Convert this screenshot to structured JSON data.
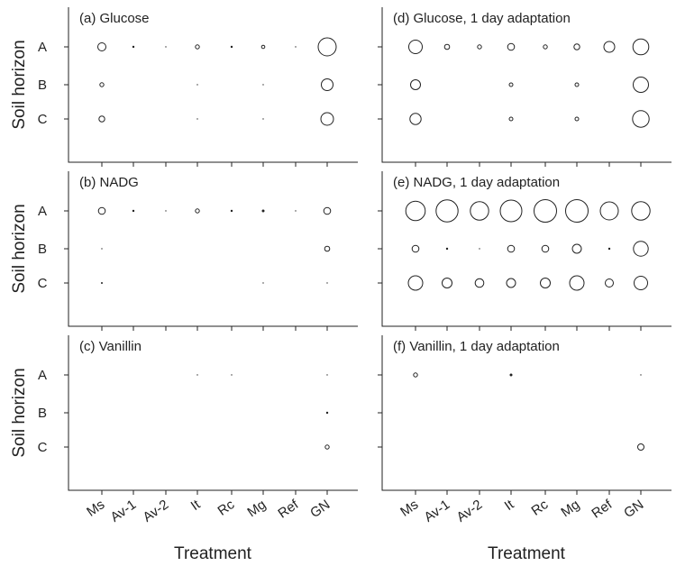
{
  "chart_data": {
    "type": "scatter",
    "encoding": "bubble",
    "xlabel": "Treatment",
    "ylabel": "Soil horizon",
    "categories": [
      "Ms",
      "Av-1",
      "Av-2",
      "It",
      "Rc",
      "Mg",
      "Ref",
      "GN"
    ],
    "horizons": [
      "A",
      "B",
      "C"
    ],
    "grid": false,
    "legend": "none",
    "panels": [
      {
        "title": "(a) Glucose",
        "values": [
          [
            0.45,
            0.12,
            0.05,
            0.22,
            0.12,
            0.18,
            0.05,
            1.0
          ],
          [
            0.22,
            0.0,
            0.0,
            0.08,
            0.0,
            0.05,
            0.0,
            0.65
          ],
          [
            0.32,
            0.0,
            0.0,
            0.08,
            0.0,
            0.05,
            0.0,
            0.7
          ]
        ]
      },
      {
        "title": "(d) Glucose, 1 day adaptation",
        "values": [
          [
            0.75,
            0.28,
            0.22,
            0.38,
            0.22,
            0.32,
            0.6,
            0.88
          ],
          [
            0.55,
            0.0,
            0.0,
            0.2,
            0.0,
            0.2,
            0.0,
            0.85
          ],
          [
            0.62,
            0.0,
            0.0,
            0.2,
            0.0,
            0.2,
            0.0,
            0.92
          ]
        ]
      },
      {
        "title": "(b) NADG",
        "values": [
          [
            0.38,
            0.12,
            0.05,
            0.22,
            0.12,
            0.15,
            0.05,
            0.38
          ],
          [
            0.03,
            0.0,
            0.0,
            0.0,
            0.0,
            0.0,
            0.0,
            0.28
          ],
          [
            0.1,
            0.0,
            0.0,
            0.0,
            0.0,
            0.03,
            0.0,
            0.05
          ]
        ]
      },
      {
        "title": "(e) NADG, 1 day adaptation",
        "values": [
          [
            1.08,
            1.22,
            1.02,
            1.2,
            1.25,
            1.25,
            1.0,
            1.02
          ],
          [
            0.38,
            0.12,
            0.08,
            0.38,
            0.38,
            0.5,
            0.12,
            0.82
          ],
          [
            0.8,
            0.55,
            0.48,
            0.5,
            0.55,
            0.8,
            0.45,
            0.75
          ]
        ]
      },
      {
        "title": "(c) Vanillin",
        "values": [
          [
            0.0,
            0.0,
            0.0,
            0.05,
            0.05,
            0.0,
            0.0,
            0.05
          ],
          [
            0.0,
            0.0,
            0.0,
            0.0,
            0.0,
            0.0,
            0.0,
            0.12
          ],
          [
            0.0,
            0.0,
            0.0,
            0.0,
            0.0,
            0.0,
            0.0,
            0.22
          ]
        ]
      },
      {
        "title": "(f) Vanillin, 1 day adaptation",
        "values": [
          [
            0.22,
            0.0,
            0.0,
            0.15,
            0.0,
            0.0,
            0.0,
            0.05
          ],
          [
            0.0,
            0.0,
            0.0,
            0.0,
            0.0,
            0.0,
            0.0,
            0.0
          ],
          [
            0.0,
            0.0,
            0.0,
            0.0,
            0.0,
            0.0,
            0.0,
            0.35
          ]
        ]
      }
    ]
  }
}
